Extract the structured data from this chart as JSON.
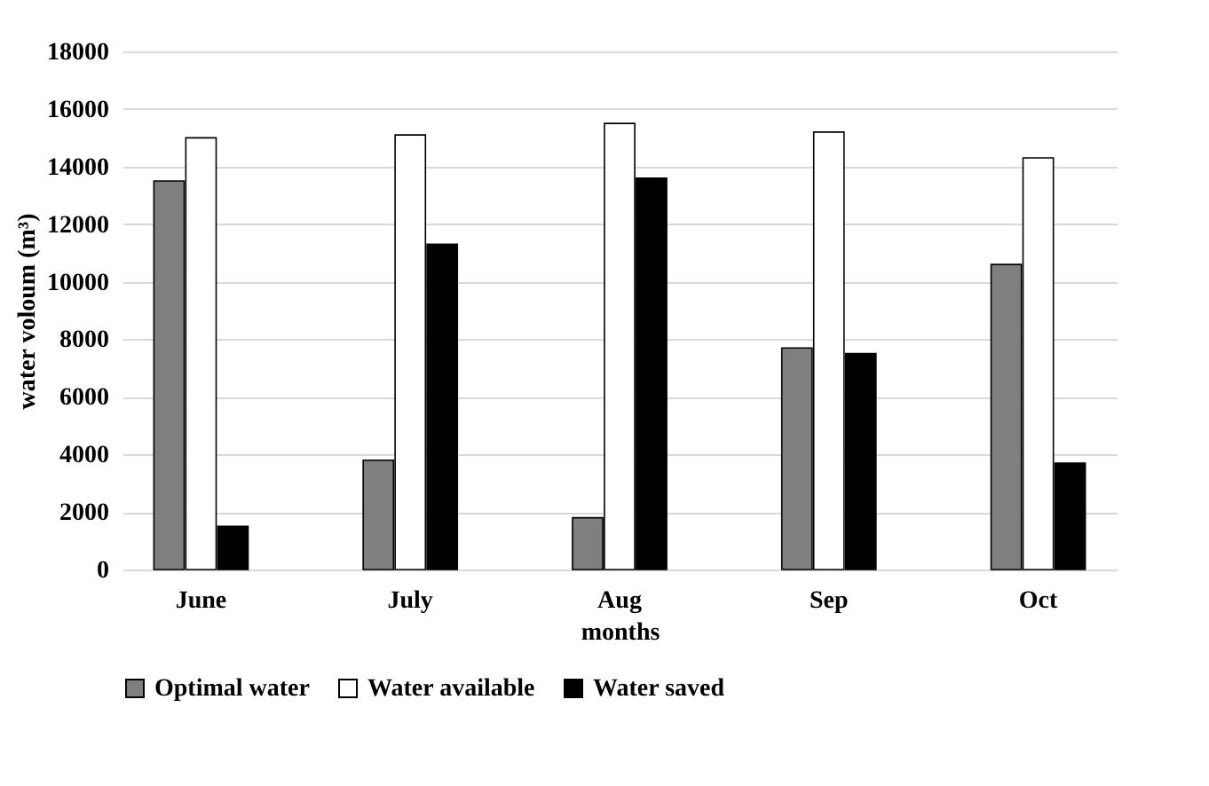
{
  "chart_data": {
    "type": "bar",
    "xlabel": "months",
    "ylabel": "water voloum (m³)",
    "categories": [
      "June",
      "July",
      "Aug",
      "Sep",
      "Oct"
    ],
    "series": [
      {
        "name": "Optimal water",
        "color": "#7f7f7f",
        "values": [
          13500,
          3800,
          1800,
          7700,
          10600
        ]
      },
      {
        "name": "Water available",
        "color": "#ffffff",
        "values": [
          15000,
          15100,
          15500,
          15200,
          14300
        ]
      },
      {
        "name": "Water saved",
        "color": "#000000",
        "values": [
          1500,
          11300,
          13600,
          7500,
          3700
        ]
      }
    ],
    "ylim": [
      0,
      18000
    ],
    "yticks": [
      0,
      2000,
      4000,
      6000,
      8000,
      10000,
      12000,
      14000,
      16000,
      18000
    ],
    "grid": "y",
    "legend": "bottom"
  }
}
